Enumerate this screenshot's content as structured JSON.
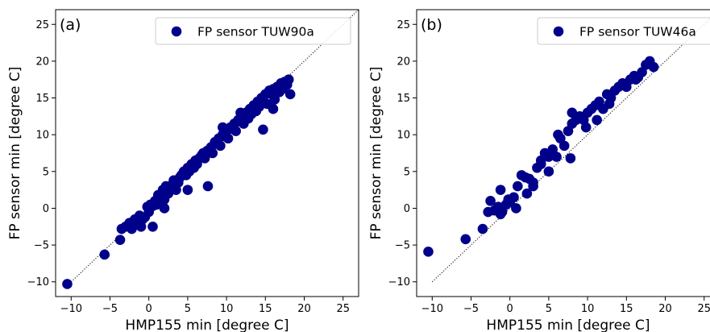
{
  "chart_data": [
    {
      "type": "scatter",
      "panel_label": "(a)",
      "xlabel": "HMP155 min [degree C]",
      "ylabel": "FP sensor min [degree C]",
      "xlim": [
        -12,
        27
      ],
      "ylim": [
        -12,
        27
      ],
      "xticks": [
        -10,
        -5,
        0,
        5,
        10,
        15,
        20,
        25
      ],
      "yticks": [
        -10,
        -5,
        0,
        5,
        10,
        15,
        20,
        25
      ],
      "xtick_labels": [
        "−10",
        "−5",
        "0",
        "5",
        "10",
        "15",
        "20",
        "25"
      ],
      "ytick_labels": [
        "−10",
        "−5",
        "0",
        "5",
        "10",
        "15",
        "20",
        "25"
      ],
      "reference_line": {
        "style": "dotted",
        "color": "#000000",
        "from": [
          -10,
          -10
        ],
        "to": [
          27,
          27
        ]
      },
      "legend_position": "top-right",
      "grid": false,
      "series": [
        {
          "name": "FP sensor TUW90a",
          "color": "#00008b",
          "x": [
            -10.5,
            -5.7,
            -3.7,
            -3.5,
            -3.0,
            -2.5,
            -2.2,
            -1.8,
            -1.5,
            -1.2,
            -1.0,
            -0.8,
            -0.5,
            -0.2,
            0.0,
            0.2,
            0.5,
            0.8,
            1.0,
            1.2,
            1.5,
            1.8,
            2.0,
            2.2,
            2.5,
            2.8,
            3.0,
            3.2,
            3.5,
            3.8,
            4.0,
            4.2,
            4.5,
            4.8,
            5.0,
            5.2,
            5.5,
            5.8,
            6.0,
            6.2,
            6.5,
            6.8,
            7.0,
            7.2,
            7.5,
            7.8,
            8.0,
            8.2,
            8.5,
            8.8,
            9.0,
            9.2,
            9.5,
            9.8,
            10.0,
            10.2,
            10.5,
            10.8,
            11.0,
            11.2,
            11.5,
            11.8,
            12.0,
            12.2,
            12.5,
            12.8,
            13.0,
            13.2,
            13.5,
            13.8,
            14.0,
            14.2,
            14.5,
            14.8,
            15.0,
            15.2,
            15.5,
            15.8,
            16.0,
            16.2,
            16.5,
            16.8,
            17.0,
            17.2,
            17.5,
            17.8,
            18.0,
            18.2,
            7.6,
            14.7,
            5.0,
            8.5,
            11.8,
            13.5,
            16.0,
            0.5,
            2.0,
            9.5
          ],
          "y": [
            -10.3,
            -6.3,
            -4.3,
            -2.8,
            -2.5,
            -2.0,
            -2.8,
            -1.5,
            -2.2,
            -1.0,
            -2.5,
            -1.5,
            -1.2,
            0.2,
            -0.5,
            0.5,
            0.3,
            1.0,
            0.5,
            1.8,
            0.8,
            2.5,
            1.2,
            3.0,
            2.0,
            2.8,
            3.2,
            3.8,
            2.5,
            3.5,
            4.2,
            4.5,
            5.0,
            4.5,
            5.5,
            5.0,
            6.0,
            5.5,
            6.5,
            6.0,
            6.8,
            7.2,
            7.5,
            6.8,
            7.8,
            8.0,
            8.3,
            7.5,
            8.8,
            9.0,
            9.5,
            8.5,
            10.0,
            9.8,
            10.5,
            9.5,
            11.0,
            10.8,
            11.5,
            10.5,
            12.0,
            11.8,
            12.5,
            11.5,
            13.0,
            12.2,
            13.5,
            12.8,
            14.0,
            13.2,
            14.5,
            13.8,
            15.0,
            14.5,
            15.5,
            14.2,
            16.0,
            15.5,
            16.2,
            14.8,
            16.5,
            15.8,
            17.0,
            16.2,
            17.2,
            16.8,
            17.5,
            15.5,
            3.0,
            10.7,
            2.5,
            9.0,
            13.0,
            14.0,
            13.5,
            -2.5,
            0.0,
            11.0
          ]
        }
      ]
    },
    {
      "type": "scatter",
      "panel_label": "(b)",
      "xlabel": "HMP155 min [degree C]",
      "ylabel": "FP sensor min [degree C]",
      "xlim": [
        -12,
        27
      ],
      "ylim": [
        -12,
        27
      ],
      "xticks": [
        -10,
        -5,
        0,
        5,
        10,
        15,
        20,
        25
      ],
      "yticks": [
        -10,
        -5,
        0,
        5,
        10,
        15,
        20,
        25
      ],
      "xtick_labels": [
        "−10",
        "−5",
        "0",
        "5",
        "10",
        "15",
        "20",
        "25"
      ],
      "ytick_labels": [
        "−10",
        "−5",
        "0",
        "5",
        "10",
        "15",
        "20",
        "25"
      ],
      "reference_line": {
        "style": "dotted",
        "color": "#000000",
        "from": [
          -10,
          -10
        ],
        "to": [
          27,
          27
        ]
      },
      "legend_position": "top-right",
      "grid": false,
      "series": [
        {
          "name": "FP sensor TUW46a",
          "color": "#00008b",
          "x": [
            -10.5,
            -5.7,
            -3.5,
            -2.8,
            -2.5,
            -2.0,
            -1.5,
            -1.2,
            -1.0,
            -0.5,
            -0.2,
            0.0,
            0.5,
            1.0,
            1.5,
            2.0,
            2.5,
            3.0,
            3.5,
            4.0,
            4.5,
            5.0,
            5.5,
            6.0,
            6.5,
            7.0,
            7.5,
            8.0,
            8.5,
            9.0,
            9.5,
            10.0,
            10.5,
            11.0,
            11.5,
            12.0,
            12.5,
            13.0,
            13.5,
            14.0,
            14.5,
            15.0,
            15.5,
            16.0,
            16.5,
            17.0,
            17.5,
            18.0,
            18.5,
            -1.2,
            0.8,
            2.2,
            4.0,
            7.8,
            9.8,
            6.2,
            8.0,
            11.2,
            5.0,
            3.0,
            12.8,
            16.2
          ],
          "y": [
            -5.9,
            -4.2,
            -2.8,
            -0.5,
            1.0,
            -0.3,
            0.2,
            2.5,
            -0.5,
            0.5,
            1.2,
            0.8,
            1.5,
            3.0,
            4.5,
            4.2,
            4.0,
            3.5,
            5.5,
            6.0,
            7.5,
            7.0,
            8.0,
            7.0,
            9.5,
            8.5,
            10.5,
            11.5,
            12.0,
            12.5,
            12.0,
            13.0,
            13.5,
            14.0,
            14.5,
            13.5,
            15.5,
            15.0,
            16.0,
            16.5,
            17.0,
            16.5,
            17.5,
            18.0,
            17.8,
            18.5,
            19.5,
            20.0,
            19.2,
            -0.8,
            0.0,
            2.0,
            6.5,
            6.8,
            11.0,
            10.0,
            13.0,
            12.0,
            5.0,
            3.0,
            14.2,
            17.5
          ]
        }
      ]
    }
  ]
}
